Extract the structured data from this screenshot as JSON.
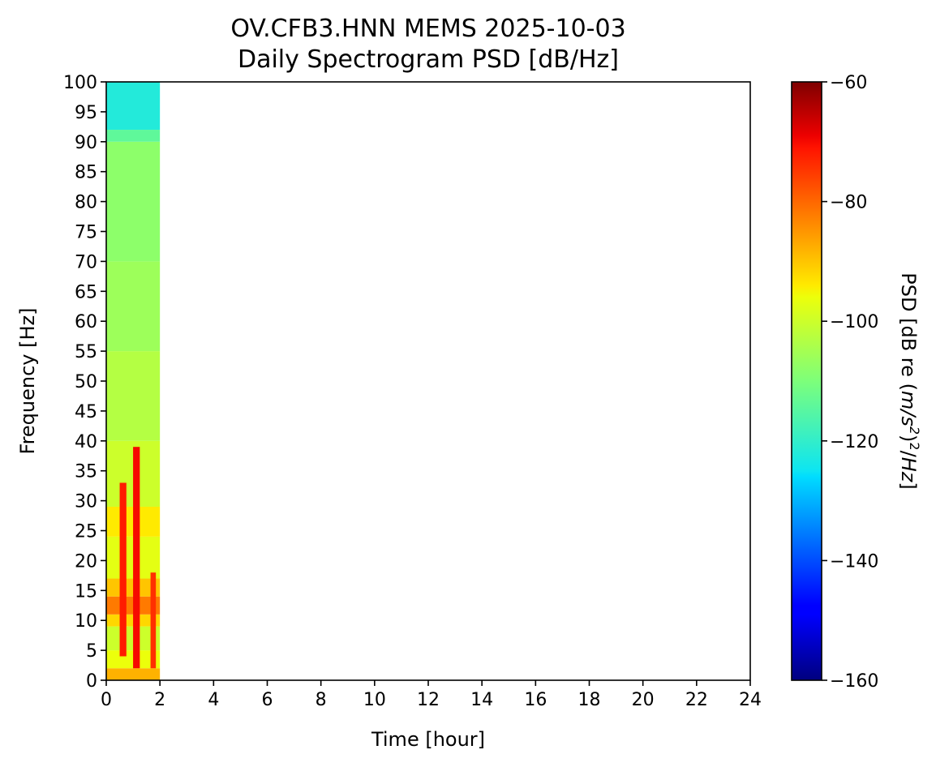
{
  "chart_data": {
    "type": "heatmap",
    "title": "OV.CFB3.HNN MEMS 2025-10-03",
    "subtitle": "Daily Spectrogram PSD [dB/Hz]",
    "xlabel": "Time [hour]",
    "ylabel": "Frequency [Hz]",
    "xlim": [
      0,
      24
    ],
    "ylim": [
      0,
      100
    ],
    "x_ticks": [
      0,
      2,
      4,
      6,
      8,
      10,
      12,
      14,
      16,
      18,
      20,
      22,
      24
    ],
    "y_ticks": [
      0,
      5,
      10,
      15,
      20,
      25,
      30,
      35,
      40,
      45,
      50,
      55,
      60,
      65,
      70,
      75,
      80,
      85,
      90,
      95,
      100
    ],
    "colormap": "jet",
    "colorbar": {
      "label": "PSD [dB re (m/s²)²/Hz]",
      "label_parts": [
        "PSD [dB re (",
        "m/s",
        "2",
        ")",
        "2",
        "/",
        "Hz",
        "]"
      ],
      "range": [
        -160,
        -60
      ],
      "ticks": [
        -160,
        -140,
        -120,
        -100,
        -80,
        -60
      ],
      "tick_labels": [
        "−160",
        "−140",
        "−120",
        "−100",
        "−80",
        "−60"
      ]
    },
    "data_extent_hours": [
      0,
      2
    ],
    "frequency_bands": [
      {
        "f": [
          0,
          2
        ],
        "psd": -88
      },
      {
        "f": [
          2,
          5
        ],
        "psd": -96
      },
      {
        "f": [
          5,
          9
        ],
        "psd": -100
      },
      {
        "f": [
          9,
          11
        ],
        "psd": -92
      },
      {
        "f": [
          11,
          14
        ],
        "psd": -82
      },
      {
        "f": [
          14,
          17
        ],
        "psd": -90
      },
      {
        "f": [
          17,
          24
        ],
        "psd": -97
      },
      {
        "f": [
          24,
          29
        ],
        "psd": -94
      },
      {
        "f": [
          29,
          40
        ],
        "psd": -100
      },
      {
        "f": [
          40,
          55
        ],
        "psd": -103
      },
      {
        "f": [
          55,
          70
        ],
        "psd": -106
      },
      {
        "f": [
          70,
          90
        ],
        "psd": -108
      },
      {
        "f": [
          90,
          92
        ],
        "psd": -114
      },
      {
        "f": [
          92,
          100
        ],
        "psd": -122
      }
    ],
    "events": [
      {
        "t": [
          0.5,
          0.75
        ],
        "f": [
          4,
          33
        ],
        "psd": -72
      },
      {
        "t": [
          1.0,
          1.25
        ],
        "f": [
          2,
          39
        ],
        "psd": -70
      },
      {
        "t": [
          1.65,
          1.85
        ],
        "f": [
          2,
          18
        ],
        "psd": -74
      }
    ]
  }
}
